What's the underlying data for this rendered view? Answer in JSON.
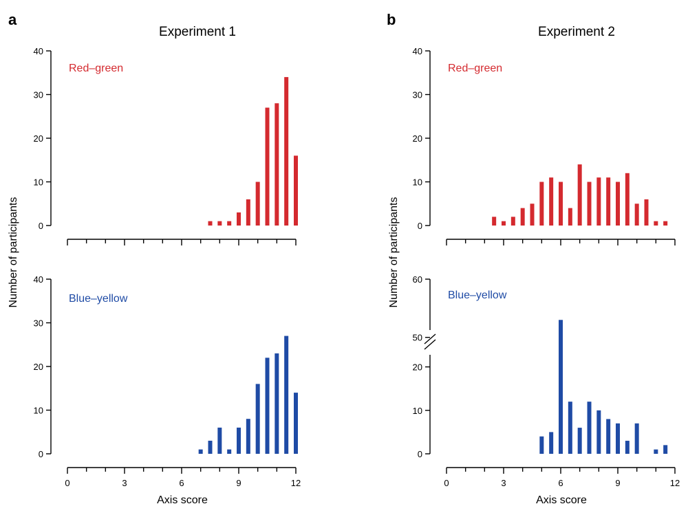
{
  "panels": [
    {
      "letter": "a",
      "title": "Experiment 1"
    },
    {
      "letter": "b",
      "title": "Experiment 2"
    }
  ],
  "colors": {
    "red_green": "#d42a2f",
    "blue_yellow": "#1f4ba5"
  },
  "chart_data": [
    {
      "type": "bar",
      "panel": "a",
      "title": "Experiment 1",
      "series_label": "Red–green",
      "color": "#d42a2f",
      "xlabel": "",
      "ylabel": "Number of participants",
      "xlim": [
        0,
        12
      ],
      "ylim": [
        0,
        40
      ],
      "yticks": [
        0,
        10,
        20,
        30,
        40
      ],
      "x": [
        7.5,
        8,
        8.5,
        9,
        9.5,
        10,
        10.5,
        11,
        11.5,
        12
      ],
      "values": [
        1,
        1,
        1,
        3,
        6,
        10,
        27,
        28,
        34,
        16
      ]
    },
    {
      "type": "bar",
      "panel": "a",
      "series_label": "Blue–yellow",
      "color": "#1f4ba5",
      "xlabel": "Axis score",
      "ylabel": "Number of participants",
      "xlim": [
        0,
        12
      ],
      "ylim": [
        0,
        40
      ],
      "xticks": [
        0,
        3,
        6,
        9,
        12
      ],
      "yticks": [
        0,
        10,
        20,
        30,
        40
      ],
      "x": [
        7,
        7.5,
        8,
        8.5,
        9,
        9.5,
        10,
        10.5,
        11,
        11.5,
        12
      ],
      "values": [
        1,
        3,
        6,
        1,
        6,
        8,
        16,
        22,
        23,
        27,
        14
      ]
    },
    {
      "type": "bar",
      "panel": "b",
      "title": "Experiment 2",
      "series_label": "Red–green",
      "color": "#d42a2f",
      "xlabel": "",
      "ylabel": "Number of participants",
      "xlim": [
        0,
        12
      ],
      "ylim": [
        0,
        40
      ],
      "yticks": [
        0,
        10,
        20,
        30,
        40
      ],
      "x": [
        2.5,
        3,
        3.5,
        4,
        4.5,
        5,
        5.5,
        6,
        6.5,
        7,
        7.5,
        8,
        8.5,
        9,
        9.5,
        10,
        10.5,
        11,
        11.5
      ],
      "values": [
        2,
        1,
        2,
        4,
        5,
        10,
        11,
        10,
        4,
        14,
        10,
        11,
        11,
        10,
        12,
        5,
        6,
        1,
        1
      ]
    },
    {
      "type": "bar",
      "panel": "b",
      "series_label": "Blue–yellow",
      "color": "#1f4ba5",
      "xlabel": "Axis score",
      "ylabel": "Number of participants",
      "xlim": [
        0,
        12
      ],
      "ylim": [
        0,
        60
      ],
      "axis_break": [
        25,
        45
      ],
      "xticks": [
        0,
        3,
        6,
        9,
        12
      ],
      "yticks": [
        0,
        10,
        20,
        50,
        60
      ],
      "x": [
        5,
        5.5,
        6,
        6.5,
        7,
        7.5,
        8,
        8.5,
        9,
        9.5,
        10,
        11,
        11.5
      ],
      "values": [
        4,
        5,
        53,
        12,
        6,
        12,
        10,
        8,
        7,
        3,
        7,
        1,
        2
      ]
    }
  ]
}
